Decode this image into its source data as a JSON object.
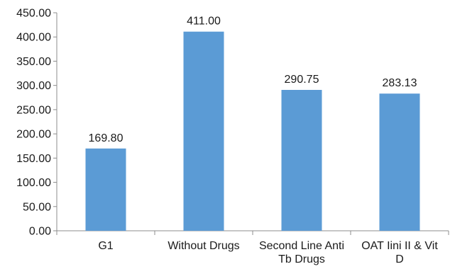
{
  "chart_data": {
    "type": "bar",
    "categories": [
      [
        "G1"
      ],
      [
        "Without Drugs"
      ],
      [
        "Second Line Anti",
        "Tb Drugs"
      ],
      [
        "OAT Iini II & Vit",
        "D"
      ]
    ],
    "values": [
      169.8,
      411.0,
      290.75,
      283.13
    ],
    "value_labels": [
      "169.80",
      "411.00",
      "290.75",
      "283.13"
    ],
    "y_ticks": [
      "0.00",
      "50.00",
      "100.00",
      "150.00",
      "200.00",
      "250.00",
      "300.00",
      "350.00",
      "400.00",
      "450.00"
    ],
    "ylim": [
      0,
      450
    ],
    "title": "",
    "xlabel": "",
    "ylabel": "",
    "grid": false,
    "bar_color": "#5b9bd5"
  }
}
